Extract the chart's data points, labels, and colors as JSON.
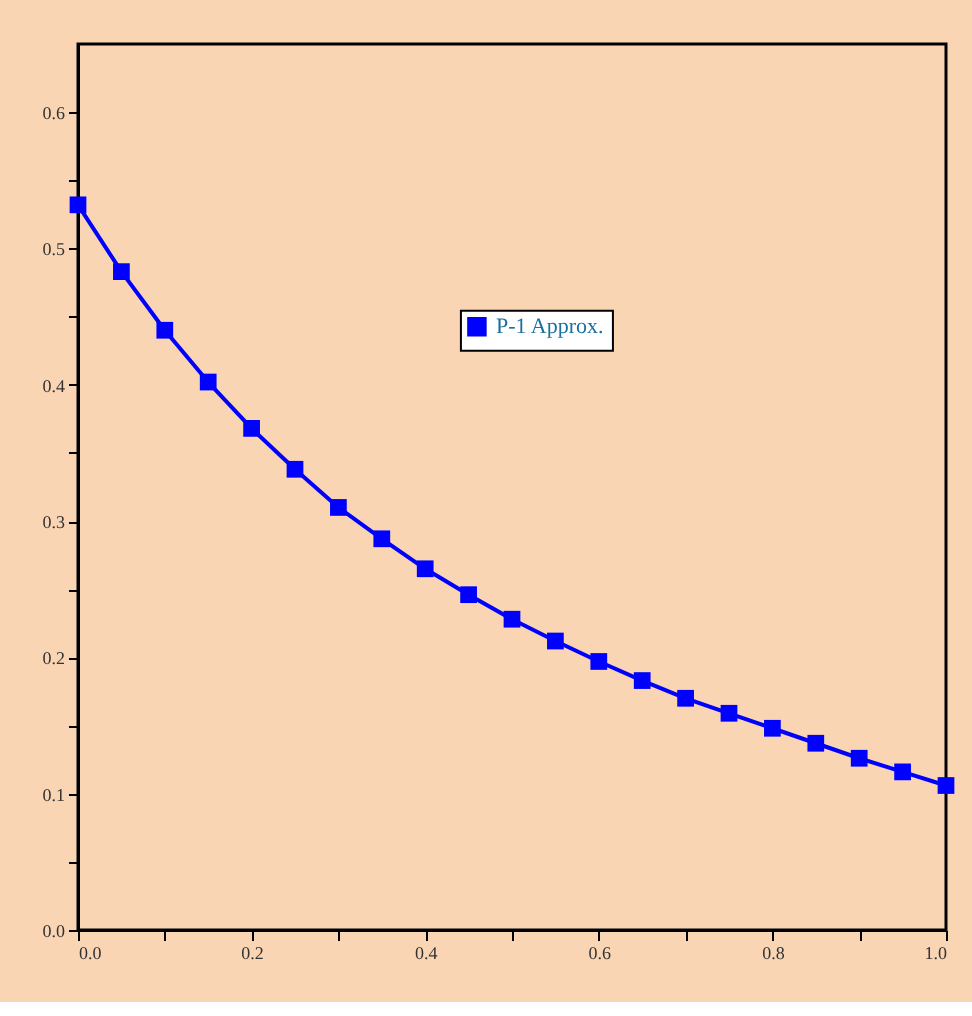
{
  "chart_data": {
    "type": "line",
    "x": [
      0,
      0.05,
      0.1,
      0.15,
      0.2,
      0.25,
      0.3,
      0.35,
      0.4,
      0.45,
      0.5,
      0.55,
      0.6,
      0.65,
      0.7,
      0.75,
      0.8,
      0.85,
      0.9,
      0.95,
      1.0
    ],
    "series": [
      {
        "name": "P-1 Approx.",
        "color": "#0000ff",
        "values": [
          0.532,
          0.483,
          0.44,
          0.402,
          0.368,
          0.338,
          0.31,
          0.287,
          0.265,
          0.246,
          0.228,
          0.212,
          0.197,
          0.183,
          0.17,
          0.159,
          0.148,
          0.137,
          0.126,
          0.116,
          0.106
        ]
      }
    ],
    "xlim": [
      0,
      1.0
    ],
    "ylim": [
      0,
      0.65
    ],
    "xticks": [
      {
        "value": 0,
        "label": "0.0"
      },
      {
        "value": 0.1,
        "label": null
      },
      0.2,
      {
        "value": 0.3,
        "label": null
      },
      0.4,
      {
        "value": 0.5,
        "label": null
      },
      0.6,
      {
        "value": 0.7,
        "label": null
      },
      0.8,
      {
        "value": 0.9,
        "label": null
      },
      {
        "value": 1.0,
        "label": "1.0"
      }
    ],
    "yticks": [
      {
        "value": 0,
        "label": "0.0"
      },
      {
        "value": 0.05,
        "label": null
      },
      0.1,
      {
        "value": 0.15,
        "label": null
      },
      0.2,
      {
        "value": 0.25,
        "label": null
      },
      0.3,
      {
        "value": 0.35,
        "label": null
      },
      0.4,
      {
        "value": 0.45,
        "label": null
      },
      0.5,
      {
        "value": 0.55,
        "label": null
      },
      0.6
    ],
    "marker": "square",
    "line_style": "solid",
    "legend": "top",
    "grid": false
  }
}
